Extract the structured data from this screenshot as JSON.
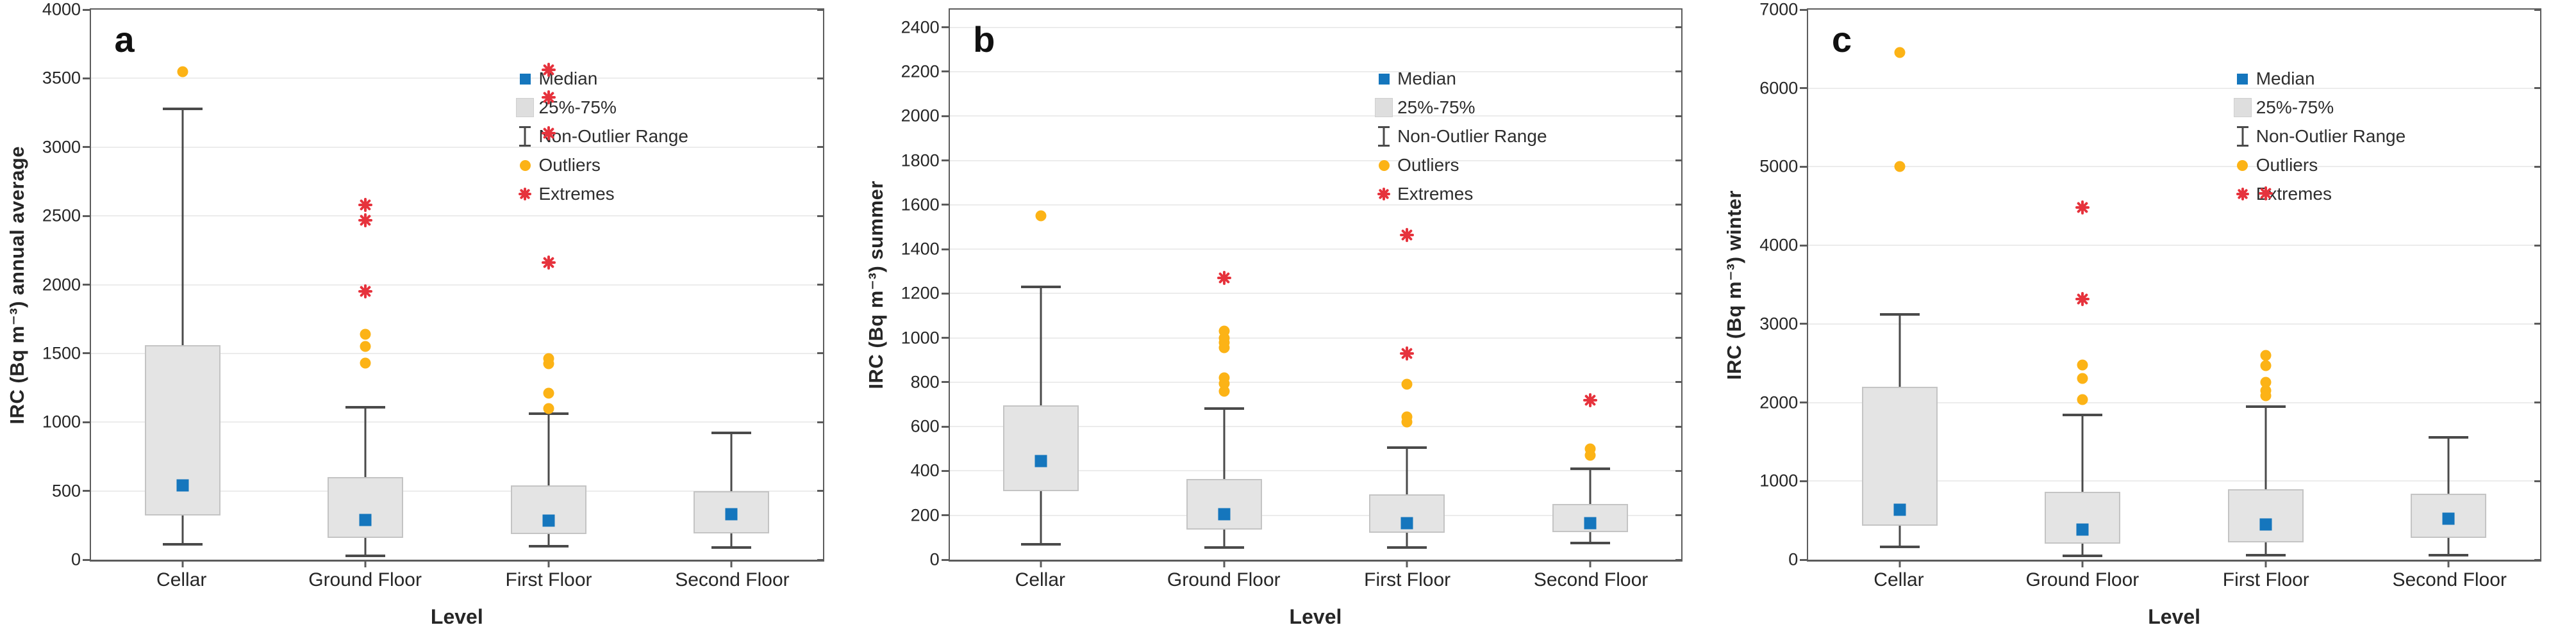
{
  "figure": {
    "x_axis_title": "Level",
    "categories": [
      "Cellar",
      "Ground Floor",
      "First Floor",
      "Second Floor"
    ],
    "legend_labels": [
      "Median",
      "25%-75%",
      "Non-Outlier Range",
      "Outliers",
      "Extremes"
    ],
    "colors": {
      "median": "#1576bd",
      "box_fill": "#e4e4e4",
      "box_border": "#c4c4c4",
      "whisker": "#4a4a4a",
      "outlier": "#fcb316",
      "extreme": "#e6333d",
      "grid": "#ececec",
      "spine": "#5c5c5c",
      "text": "#262626"
    }
  },
  "chart_data": [
    {
      "type": "box",
      "panel_label": "a",
      "ylabel": "IRC (Bq m⁻³) annual average",
      "xlabel": "Level",
      "categories": [
        "Cellar",
        "Ground Floor",
        "First Floor",
        "Second Floor"
      ],
      "ylim": [
        0,
        4000
      ],
      "yticks": [
        0,
        500,
        1000,
        1500,
        2000,
        2500,
        3000,
        3500,
        4000
      ],
      "grid": true,
      "legend_position": "top-right-inside",
      "series": [
        {
          "category": "Cellar",
          "median": 540,
          "q1": 320,
          "q3": 1560,
          "whisker_low": 110,
          "whisker_high": 3280,
          "outliers": [
            3550
          ],
          "extremes": []
        },
        {
          "category": "Ground Floor",
          "median": 290,
          "q1": 160,
          "q3": 600,
          "whisker_low": 30,
          "whisker_high": 1110,
          "outliers": [
            1640,
            1550,
            1430
          ],
          "extremes": [
            2580,
            2470,
            1950
          ]
        },
        {
          "category": "First Floor",
          "median": 285,
          "q1": 185,
          "q3": 540,
          "whisker_low": 100,
          "whisker_high": 1060,
          "outliers": [
            1460,
            1425,
            1210,
            1100
          ],
          "extremes": [
            3560,
            3360,
            3100,
            2160
          ]
        },
        {
          "category": "Second Floor",
          "median": 330,
          "q1": 190,
          "q3": 500,
          "whisker_low": 90,
          "whisker_high": 920,
          "outliers": [],
          "extremes": []
        }
      ]
    },
    {
      "type": "box",
      "panel_label": "b",
      "ylabel": "IRC (Bq m⁻³) summer",
      "xlabel": "Level",
      "categories": [
        "Cellar",
        "Ground Floor",
        "First Floor",
        "Second Floor"
      ],
      "ylim": [
        0,
        2480
      ],
      "yticks": [
        0,
        200,
        400,
        600,
        800,
        1000,
        1200,
        1400,
        1600,
        1800,
        2000,
        2200,
        2400
      ],
      "grid": true,
      "legend_position": "top-right-inside",
      "series": [
        {
          "category": "Cellar",
          "median": 445,
          "q1": 310,
          "q3": 695,
          "whisker_low": 70,
          "whisker_high": 1230,
          "outliers": [
            1550
          ],
          "extremes": []
        },
        {
          "category": "Ground Floor",
          "median": 205,
          "q1": 135,
          "q3": 365,
          "whisker_low": 55,
          "whisker_high": 680,
          "outliers": [
            1030,
            1000,
            980,
            955,
            820,
            795,
            760
          ],
          "extremes": [
            1270
          ]
        },
        {
          "category": "First Floor",
          "median": 165,
          "q1": 120,
          "q3": 295,
          "whisker_low": 55,
          "whisker_high": 505,
          "outliers": [
            790,
            645,
            620
          ],
          "extremes": [
            1465,
            930
          ]
        },
        {
          "category": "Second Floor",
          "median": 165,
          "q1": 125,
          "q3": 250,
          "whisker_low": 75,
          "whisker_high": 410,
          "outliers": [
            500,
            470
          ],
          "extremes": [
            720
          ]
        }
      ]
    },
    {
      "type": "box",
      "panel_label": "c",
      "ylabel": "IRC (Bq m⁻³) winter",
      "xlabel": "Level",
      "categories": [
        "Cellar",
        "Ground Floor",
        "First Floor",
        "Second Floor"
      ],
      "ylim": [
        0,
        7000
      ],
      "yticks": [
        0,
        1000,
        2000,
        3000,
        4000,
        5000,
        6000,
        7000
      ],
      "grid": true,
      "legend_position": "top-right-inside",
      "series": [
        {
          "category": "Cellar",
          "median": 635,
          "q1": 430,
          "q3": 2200,
          "whisker_low": 165,
          "whisker_high": 3120,
          "outliers": [
            6450,
            5000
          ],
          "extremes": []
        },
        {
          "category": "Ground Floor",
          "median": 385,
          "q1": 200,
          "q3": 860,
          "whisker_low": 50,
          "whisker_high": 1840,
          "outliers": [
            2480,
            2310,
            2040
          ],
          "extremes": [
            4480,
            3320
          ]
        },
        {
          "category": "First Floor",
          "median": 445,
          "q1": 220,
          "q3": 900,
          "whisker_low": 60,
          "whisker_high": 1950,
          "outliers": [
            2600,
            2470,
            2260,
            2150,
            2090
          ],
          "extremes": [
            4660
          ]
        },
        {
          "category": "Second Floor",
          "median": 525,
          "q1": 280,
          "q3": 840,
          "whisker_low": 60,
          "whisker_high": 1560,
          "outliers": [],
          "extremes": []
        }
      ]
    }
  ]
}
